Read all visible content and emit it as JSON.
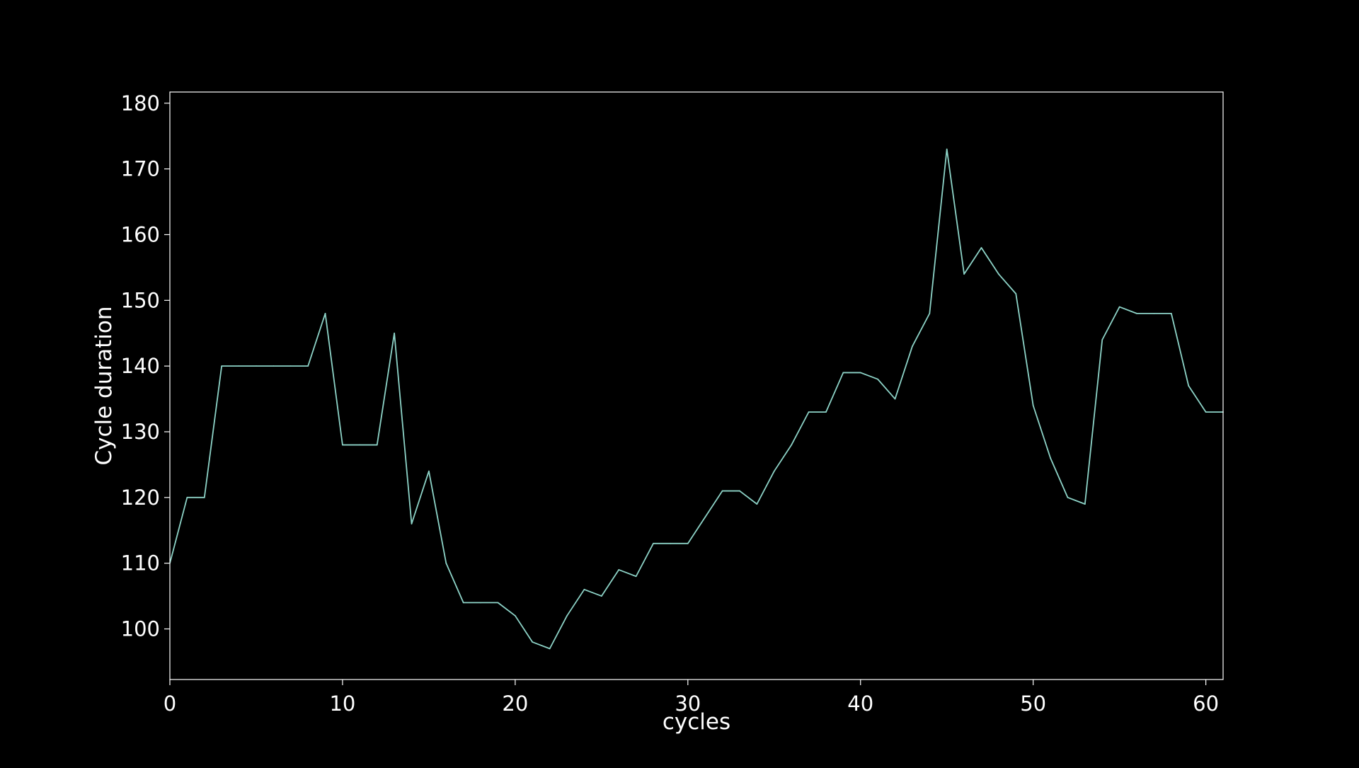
{
  "chart_data": {
    "type": "line",
    "title": "",
    "xlabel": "cycles",
    "ylabel": "Cycle duration",
    "xlim": [
      0,
      61
    ],
    "ylim": [
      92.3,
      181.7
    ],
    "x_ticks": [
      0,
      10,
      20,
      30,
      40,
      50,
      60
    ],
    "y_ticks": [
      100,
      110,
      120,
      130,
      140,
      150,
      160,
      170,
      180
    ],
    "grid": false,
    "legend": "none",
    "colors": {
      "background": "#000000",
      "line": "#8dd3c7",
      "axes": "#ffffff",
      "text": "#ffffff"
    },
    "series": [
      {
        "x": [
          0,
          1,
          2,
          3,
          4,
          5,
          6,
          7,
          8,
          9,
          10,
          11,
          12,
          13,
          14,
          15,
          16,
          17,
          18,
          19,
          20,
          21,
          22,
          23,
          24,
          25,
          26,
          27,
          28,
          29,
          30,
          31,
          32,
          33,
          34,
          35,
          36,
          37,
          38,
          39,
          40,
          41,
          42,
          43,
          44,
          45,
          46,
          47,
          48,
          49,
          50,
          51,
          52,
          53,
          54,
          55,
          56,
          57,
          58,
          59,
          60,
          61
        ],
        "values": [
          110,
          120,
          120,
          140,
          140,
          140,
          140,
          140,
          140,
          148,
          128,
          128,
          128,
          145,
          116,
          124,
          110,
          104,
          104,
          104,
          102,
          98,
          97,
          102,
          106,
          105,
          109,
          108,
          113,
          113,
          113,
          117,
          121,
          121,
          119,
          124,
          128,
          133,
          133,
          139,
          139,
          138,
          135,
          143,
          148,
          173,
          154,
          158,
          154,
          151,
          134,
          126,
          120,
          119,
          144,
          149,
          148,
          148,
          148,
          137,
          133,
          133
        ]
      }
    ]
  }
}
